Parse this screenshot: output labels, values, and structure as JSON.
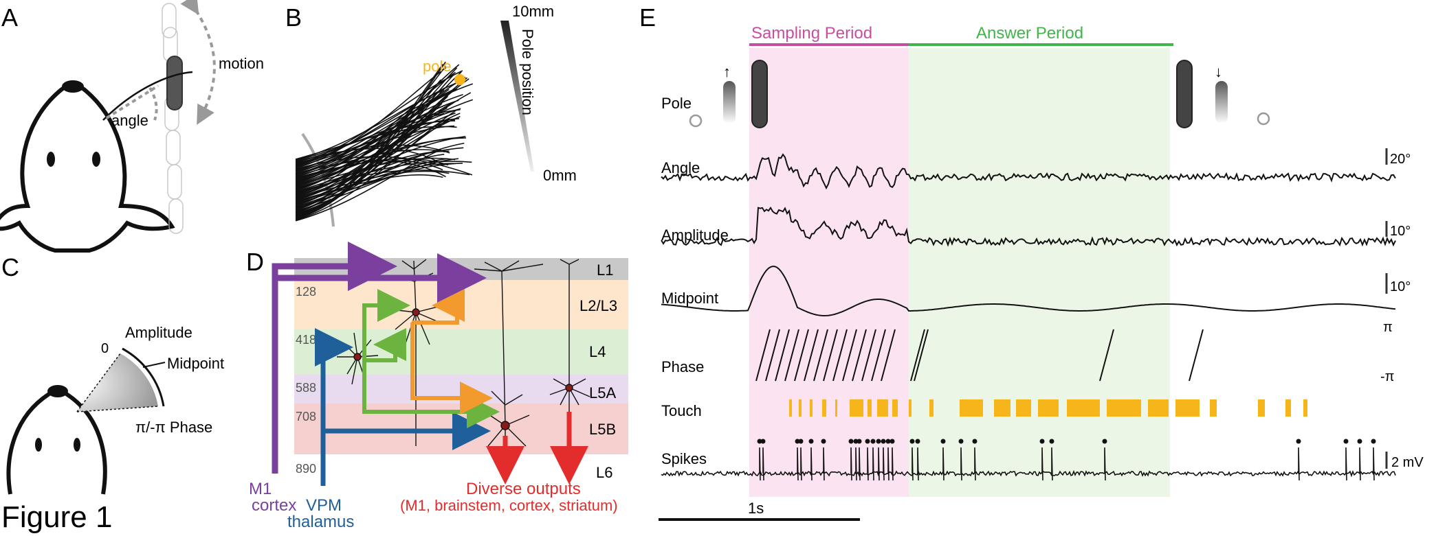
{
  "colors": {
    "m1": "#7b3f9e",
    "vpm": "#1f5f9a",
    "orange": "#f29a2e",
    "green": "#6cb33f",
    "red": "#e32d2d",
    "pole_yellow": "#f5b51b",
    "touch": "#f5b51b",
    "sampling_text": "#c64ea0",
    "answer_text": "#3fb54a",
    "sampling_bg": "#fbe3f1",
    "answer_bg": "#ecf6e6",
    "L1": "#c8c8c8",
    "L23": "#fde6cc",
    "L4": "#dcefd4",
    "L5A": "#e9dbef",
    "L5B": "#f6cfcf",
    "L6": "#f7e6e6"
  },
  "figure_title": "Figure 1",
  "panelA": {
    "label": "A",
    "motion": "motion",
    "angle": "angle"
  },
  "panelB": {
    "label": "B",
    "pole": "pole",
    "scale_top": "10mm",
    "scale_title": "Pole position",
    "scale_bottom": "0mm"
  },
  "panelC": {
    "label": "C",
    "amplitude": "Amplitude",
    "zero": "0",
    "midpoint": "Midpoint",
    "phase": "π/-π Phase"
  },
  "panelD": {
    "label": "D",
    "layers": [
      {
        "name": "L1",
        "depth": ""
      },
      {
        "name": "L2/L3",
        "depth": "128"
      },
      {
        "name": "L4",
        "depth": "418"
      },
      {
        "name": "L5A",
        "depth": "588"
      },
      {
        "name": "L5B",
        "depth": "708"
      },
      {
        "name": "L6",
        "depth": "890"
      }
    ],
    "m1_line1": "M1",
    "m1_line2": "cortex",
    "vpm_line1": "VPM",
    "vpm_line2": "thalamus",
    "outputs_line1": "Diverse outputs",
    "outputs_line2": "(M1, brainstem, cortex, striatum)"
  },
  "panelE": {
    "label": "E",
    "sampling": "Sampling Period",
    "answer": "Answer Period",
    "rows": {
      "pole": "Pole",
      "angle": "Angle",
      "amplitude": "Amplitude",
      "midpoint": "Midpoint",
      "phase": "Phase",
      "touch": "Touch",
      "spikes": "Spikes"
    },
    "scales": {
      "angle": "20°",
      "amplitude": "10°",
      "midpoint": "10°",
      "phase_top": "π",
      "phase_bottom": "-π",
      "spikes": "2 mV"
    },
    "time_scale": "1s",
    "arrow_up": "↑",
    "arrow_down": "↓"
  }
}
